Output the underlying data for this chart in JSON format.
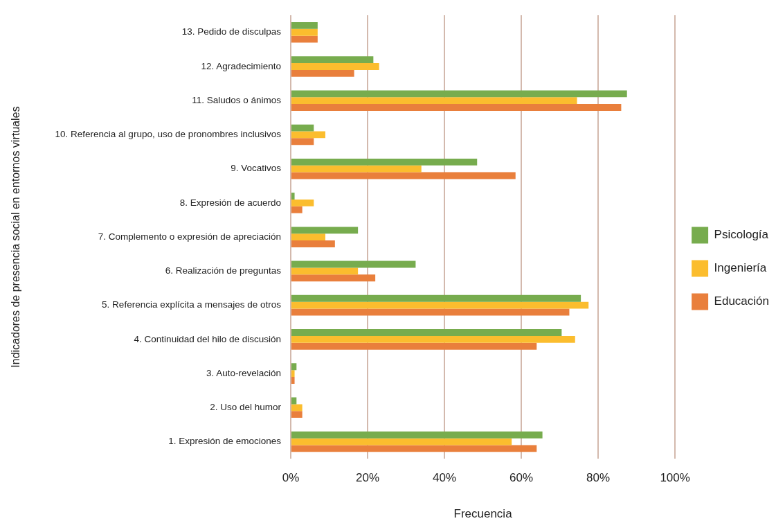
{
  "chart_data": {
    "type": "bar",
    "orientation": "horizontal",
    "xlabel": "Frecuencia",
    "ylabel": "Indicadores de presencia social en entornos virtuales",
    "categories": [
      "13. Pedido de disculpas",
      "12. Agradecimiento",
      "11. Saludos o ánimos",
      "10. Referencia al grupo, uso de pronombres inclusivos",
      "9. Vocativos",
      "8. Expresión de acuerdo",
      "7. Complemento o expresión de apreciación",
      "6. Realización de preguntas",
      "5. Referencia explícita a mensajes de otros",
      "4. Continuidad del hilo de discusión",
      "3. Auto-revelación",
      "2. Uso del humor",
      "1. Expresión de emociones"
    ],
    "series": [
      {
        "name": "Psicología",
        "color": "#77ac4e",
        "values": [
          7,
          21.5,
          87.5,
          6,
          48.5,
          1,
          17.5,
          32.5,
          75.5,
          70.5,
          1.5,
          1.5,
          65.5
        ]
      },
      {
        "name": "Ingeniería",
        "color": "#fbbd2e",
        "values": [
          7,
          23,
          74.5,
          9,
          34,
          6,
          9,
          17.5,
          77.5,
          74,
          1,
          3,
          57.5
        ]
      },
      {
        "name": "Educación",
        "color": "#e97f3c",
        "values": [
          7,
          16.5,
          86,
          6,
          58.5,
          3,
          11.5,
          22,
          72.5,
          64,
          1,
          3,
          64
        ]
      }
    ],
    "xlim": [
      0,
      100
    ],
    "xticks": [
      {
        "value": 0,
        "label": "0%"
      },
      {
        "value": 20,
        "label": "20%"
      },
      {
        "value": 40,
        "label": "40%"
      },
      {
        "value": 60,
        "label": "60%"
      },
      {
        "value": 80,
        "label": "80%"
      },
      {
        "value": 100,
        "label": "100%"
      }
    ],
    "grid": "x",
    "legend": "right"
  }
}
